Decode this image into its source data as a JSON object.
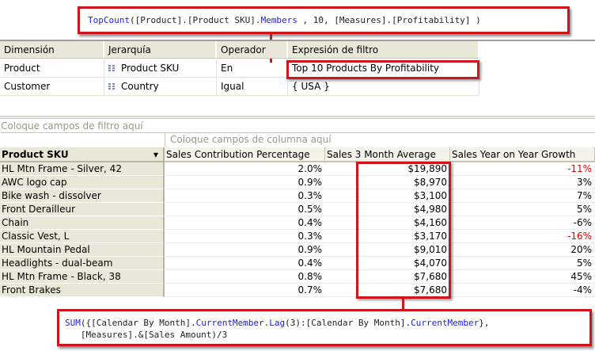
{
  "top_callout": {
    "fn": "TopCount",
    "p1": "([Product].[Product SKU].",
    "members": "Members",
    "p2": " , 10, [Measures].[Profitability] )"
  },
  "filter_table": {
    "headers": [
      "Dimensión",
      "Jerarquía",
      "Operador",
      "Expresión de filtro"
    ],
    "rows": [
      {
        "dimension": "Product",
        "hierarchy": "Product SKU",
        "operator": "En",
        "expression": "Top 10 Products By Profitability"
      },
      {
        "dimension": "Customer",
        "hierarchy": "Country",
        "operator": "Igual",
        "expression": "{ USA }"
      }
    ],
    "hierarchy_icon": "hierarchy-grid-icon"
  },
  "pivot": {
    "filter_hint": "Coloque campos de filtro aquí",
    "column_hint": "Coloque campos de columna aquí",
    "row_header": "Product SKU",
    "columns": [
      "Sales Contribution Percentage",
      "Sales 3 Month Average",
      "Sales Year on Year Growth"
    ],
    "rows": [
      {
        "sku": "HL Mtn Frame - Silver, 42",
        "pct": "2.0%",
        "avg": "$19,890",
        "yoy": "-11%",
        "neg": true
      },
      {
        "sku": "AWC logo cap",
        "pct": "0.9%",
        "avg": "$8,970",
        "yoy": "3%",
        "neg": false
      },
      {
        "sku": "Bike wash - dissolver",
        "pct": "0.3%",
        "avg": "$3,100",
        "yoy": "7%",
        "neg": false
      },
      {
        "sku": "Front Derailleur",
        "pct": "0.5%",
        "avg": "$4,980",
        "yoy": "5%",
        "neg": false
      },
      {
        "sku": "Chain",
        "pct": "0.4%",
        "avg": "$4,160",
        "yoy": "-6%",
        "neg": false
      },
      {
        "sku": "Classic Vest, L",
        "pct": "0.3%",
        "avg": "$3,170",
        "yoy": "-16%",
        "neg": true
      },
      {
        "sku": "HL Mountain Pedal",
        "pct": "0.9%",
        "avg": "$9,010",
        "yoy": "20%",
        "neg": false
      },
      {
        "sku": "Headlights - dual-beam",
        "pct": "0.4%",
        "avg": "$4,070",
        "yoy": "5%",
        "neg": false
      },
      {
        "sku": "HL Mtn Frame - Black, 38",
        "pct": "0.8%",
        "avg": "$7,680",
        "yoy": "45%",
        "neg": false
      },
      {
        "sku": "Front Brakes",
        "pct": "0.7%",
        "avg": "$7,680",
        "yoy": "-4%",
        "neg": false
      }
    ]
  },
  "bottom_callout": {
    "fn": "SUM",
    "a": "({[Calendar By Month].",
    "cm1": "CurrentMember",
    "dot": ".",
    "lag": "Lag",
    "b": "(3):[Calendar By Month].",
    "cm2": "CurrentMember",
    "c": "},",
    "line2": "   [Measures].&[Sales Amount)/3"
  },
  "colors": {
    "callout_border": "#d0141c",
    "header_bg": "#e9e8d8",
    "keyword": "#1a1aff",
    "negative": "#e00000"
  }
}
